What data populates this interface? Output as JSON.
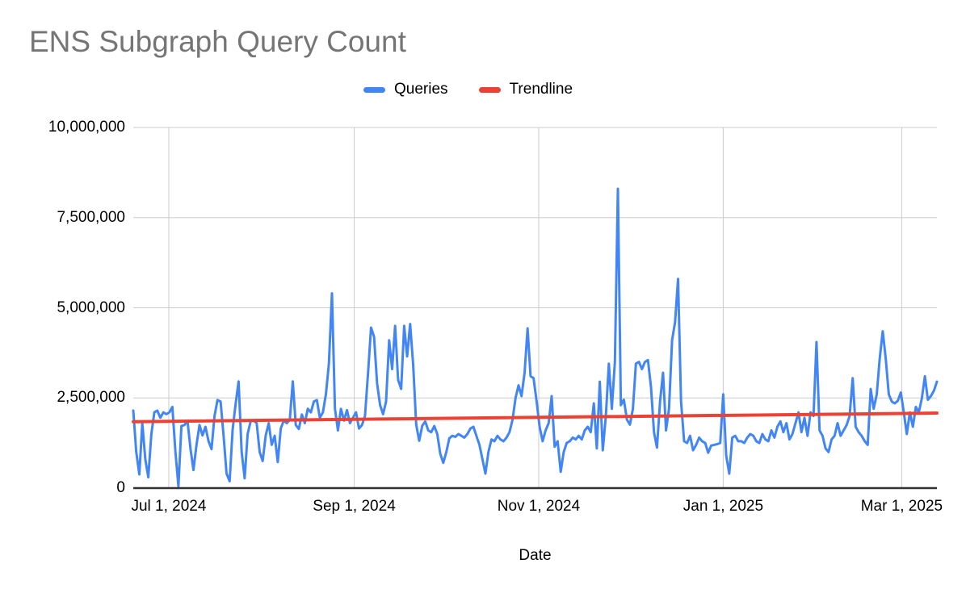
{
  "chart_data": {
    "type": "line",
    "title": "ENS Subgraph Query Count",
    "xlabel": "Date",
    "ylabel": "",
    "ylim": [
      0,
      10000000
    ],
    "grid": true,
    "legend_position": "top",
    "legend": [
      {
        "name": "Queries",
        "color": "#4285f4"
      },
      {
        "name": "Trendline",
        "color": "#ea4335"
      }
    ],
    "y_ticks": [
      {
        "label": "0",
        "value": 0
      },
      {
        "label": "2,500,000",
        "value": 2500000
      },
      {
        "label": "5,000,000",
        "value": 5000000
      },
      {
        "label": "7,500,000",
        "value": 7500000
      },
      {
        "label": "10,000,000",
        "value": 10000000
      }
    ],
    "x_ticks": [
      {
        "label": "Jul 1, 2024",
        "day": 11.8
      },
      {
        "label": "Sep 1, 2024",
        "day": 73.4
      },
      {
        "label": "Nov 1, 2024",
        "day": 134.7
      },
      {
        "label": "Jan 1, 2025",
        "day": 196
      },
      {
        "label": "Mar 1, 2025",
        "day": 255.3
      }
    ],
    "series": [
      {
        "name": "Queries",
        "cadence": "daily",
        "values": [
          2150000,
          1000000,
          380000,
          1800000,
          800000,
          300000,
          1500000,
          2100000,
          2150000,
          1950000,
          2100000,
          2050000,
          2100000,
          2250000,
          1000000,
          50000,
          1720000,
          1750000,
          1870000,
          1100000,
          500000,
          1200000,
          1750000,
          1460000,
          1700000,
          1300000,
          1080000,
          2000000,
          2440000,
          2400000,
          1460000,
          400000,
          190000,
          1620000,
          2330000,
          2960000,
          1000000,
          270000,
          1500000,
          1850000,
          1870000,
          1800000,
          1000000,
          750000,
          1460000,
          1800000,
          1200000,
          1450000,
          720000,
          1650000,
          1870000,
          1800000,
          1900000,
          2960000,
          1750000,
          1640000,
          2040000,
          1800000,
          2200000,
          2100000,
          2400000,
          2440000,
          1950000,
          2100000,
          2600000,
          3450000,
          5400000,
          2200000,
          1600000,
          2200000,
          1870000,
          2160000,
          1800000,
          1950000,
          2100000,
          1650000,
          1750000,
          2000000,
          3200000,
          4450000,
          4200000,
          2900000,
          2300000,
          2050000,
          2400000,
          4100000,
          3300000,
          4500000,
          3000000,
          2750000,
          4500000,
          3650000,
          4550000,
          3400000,
          1760000,
          1310000,
          1730000,
          1850000,
          1600000,
          1550000,
          1720000,
          1500000,
          950000,
          700000,
          1000000,
          1380000,
          1450000,
          1420000,
          1500000,
          1450000,
          1400000,
          1500000,
          1650000,
          1700000,
          1450000,
          1200000,
          800000,
          400000,
          1000000,
          1350000,
          1300000,
          1450000,
          1350000,
          1300000,
          1400000,
          1550000,
          1900000,
          2500000,
          2850000,
          2550000,
          3200000,
          4430000,
          3100000,
          3050000,
          2400000,
          1700000,
          1300000,
          1600000,
          1800000,
          2550000,
          1150000,
          1300000,
          450000,
          1000000,
          1250000,
          1300000,
          1400000,
          1350000,
          1450000,
          1350000,
          1600000,
          1700000,
          1550000,
          2350000,
          1100000,
          2950000,
          1050000,
          2000000,
          3450000,
          2200000,
          3500000,
          8300000,
          2300000,
          2450000,
          1900000,
          1760000,
          2200000,
          3450000,
          3500000,
          3300000,
          3500000,
          3550000,
          2800000,
          1550000,
          1120000,
          2400000,
          3200000,
          1600000,
          2200000,
          4100000,
          4600000,
          5800000,
          2400000,
          1300000,
          1250000,
          1450000,
          1050000,
          1200000,
          1400000,
          1300000,
          1250000,
          980000,
          1180000,
          1200000,
          1220000,
          1250000,
          2600000,
          900000,
          400000,
          1400000,
          1450000,
          1300000,
          1300000,
          1250000,
          1400000,
          1500000,
          1450000,
          1300000,
          1250000,
          1500000,
          1350000,
          1300000,
          1600000,
          1400000,
          1700000,
          1850000,
          1550000,
          1800000,
          1350000,
          1500000,
          1800000,
          2100000,
          1550000,
          1950000,
          1450000,
          2100000,
          2000000,
          4050000,
          1600000,
          1450000,
          1100000,
          1000000,
          1350000,
          1450000,
          1800000,
          1450000,
          1600000,
          1750000,
          2000000,
          3050000,
          1700000,
          1550000,
          1450000,
          1300000,
          1200000,
          2750000,
          2200000,
          2600000,
          3600000,
          4350000,
          3600000,
          2600000,
          2400000,
          2350000,
          2420000,
          2650000,
          2100000,
          1500000,
          2100000,
          1700000,
          2250000,
          2100000,
          2500000,
          3100000,
          2450000,
          2550000,
          2700000,
          2950000
        ]
      }
    ],
    "trendline": {
      "name": "Trendline",
      "start": 1840000,
      "end": 2080000
    }
  },
  "colors": {
    "series_blue": "#4285f4",
    "trend_red": "#ea4335",
    "grid": "#cccccc",
    "axis": "#333333",
    "title": "#757575",
    "text": "#000000",
    "background": "#ffffff"
  }
}
